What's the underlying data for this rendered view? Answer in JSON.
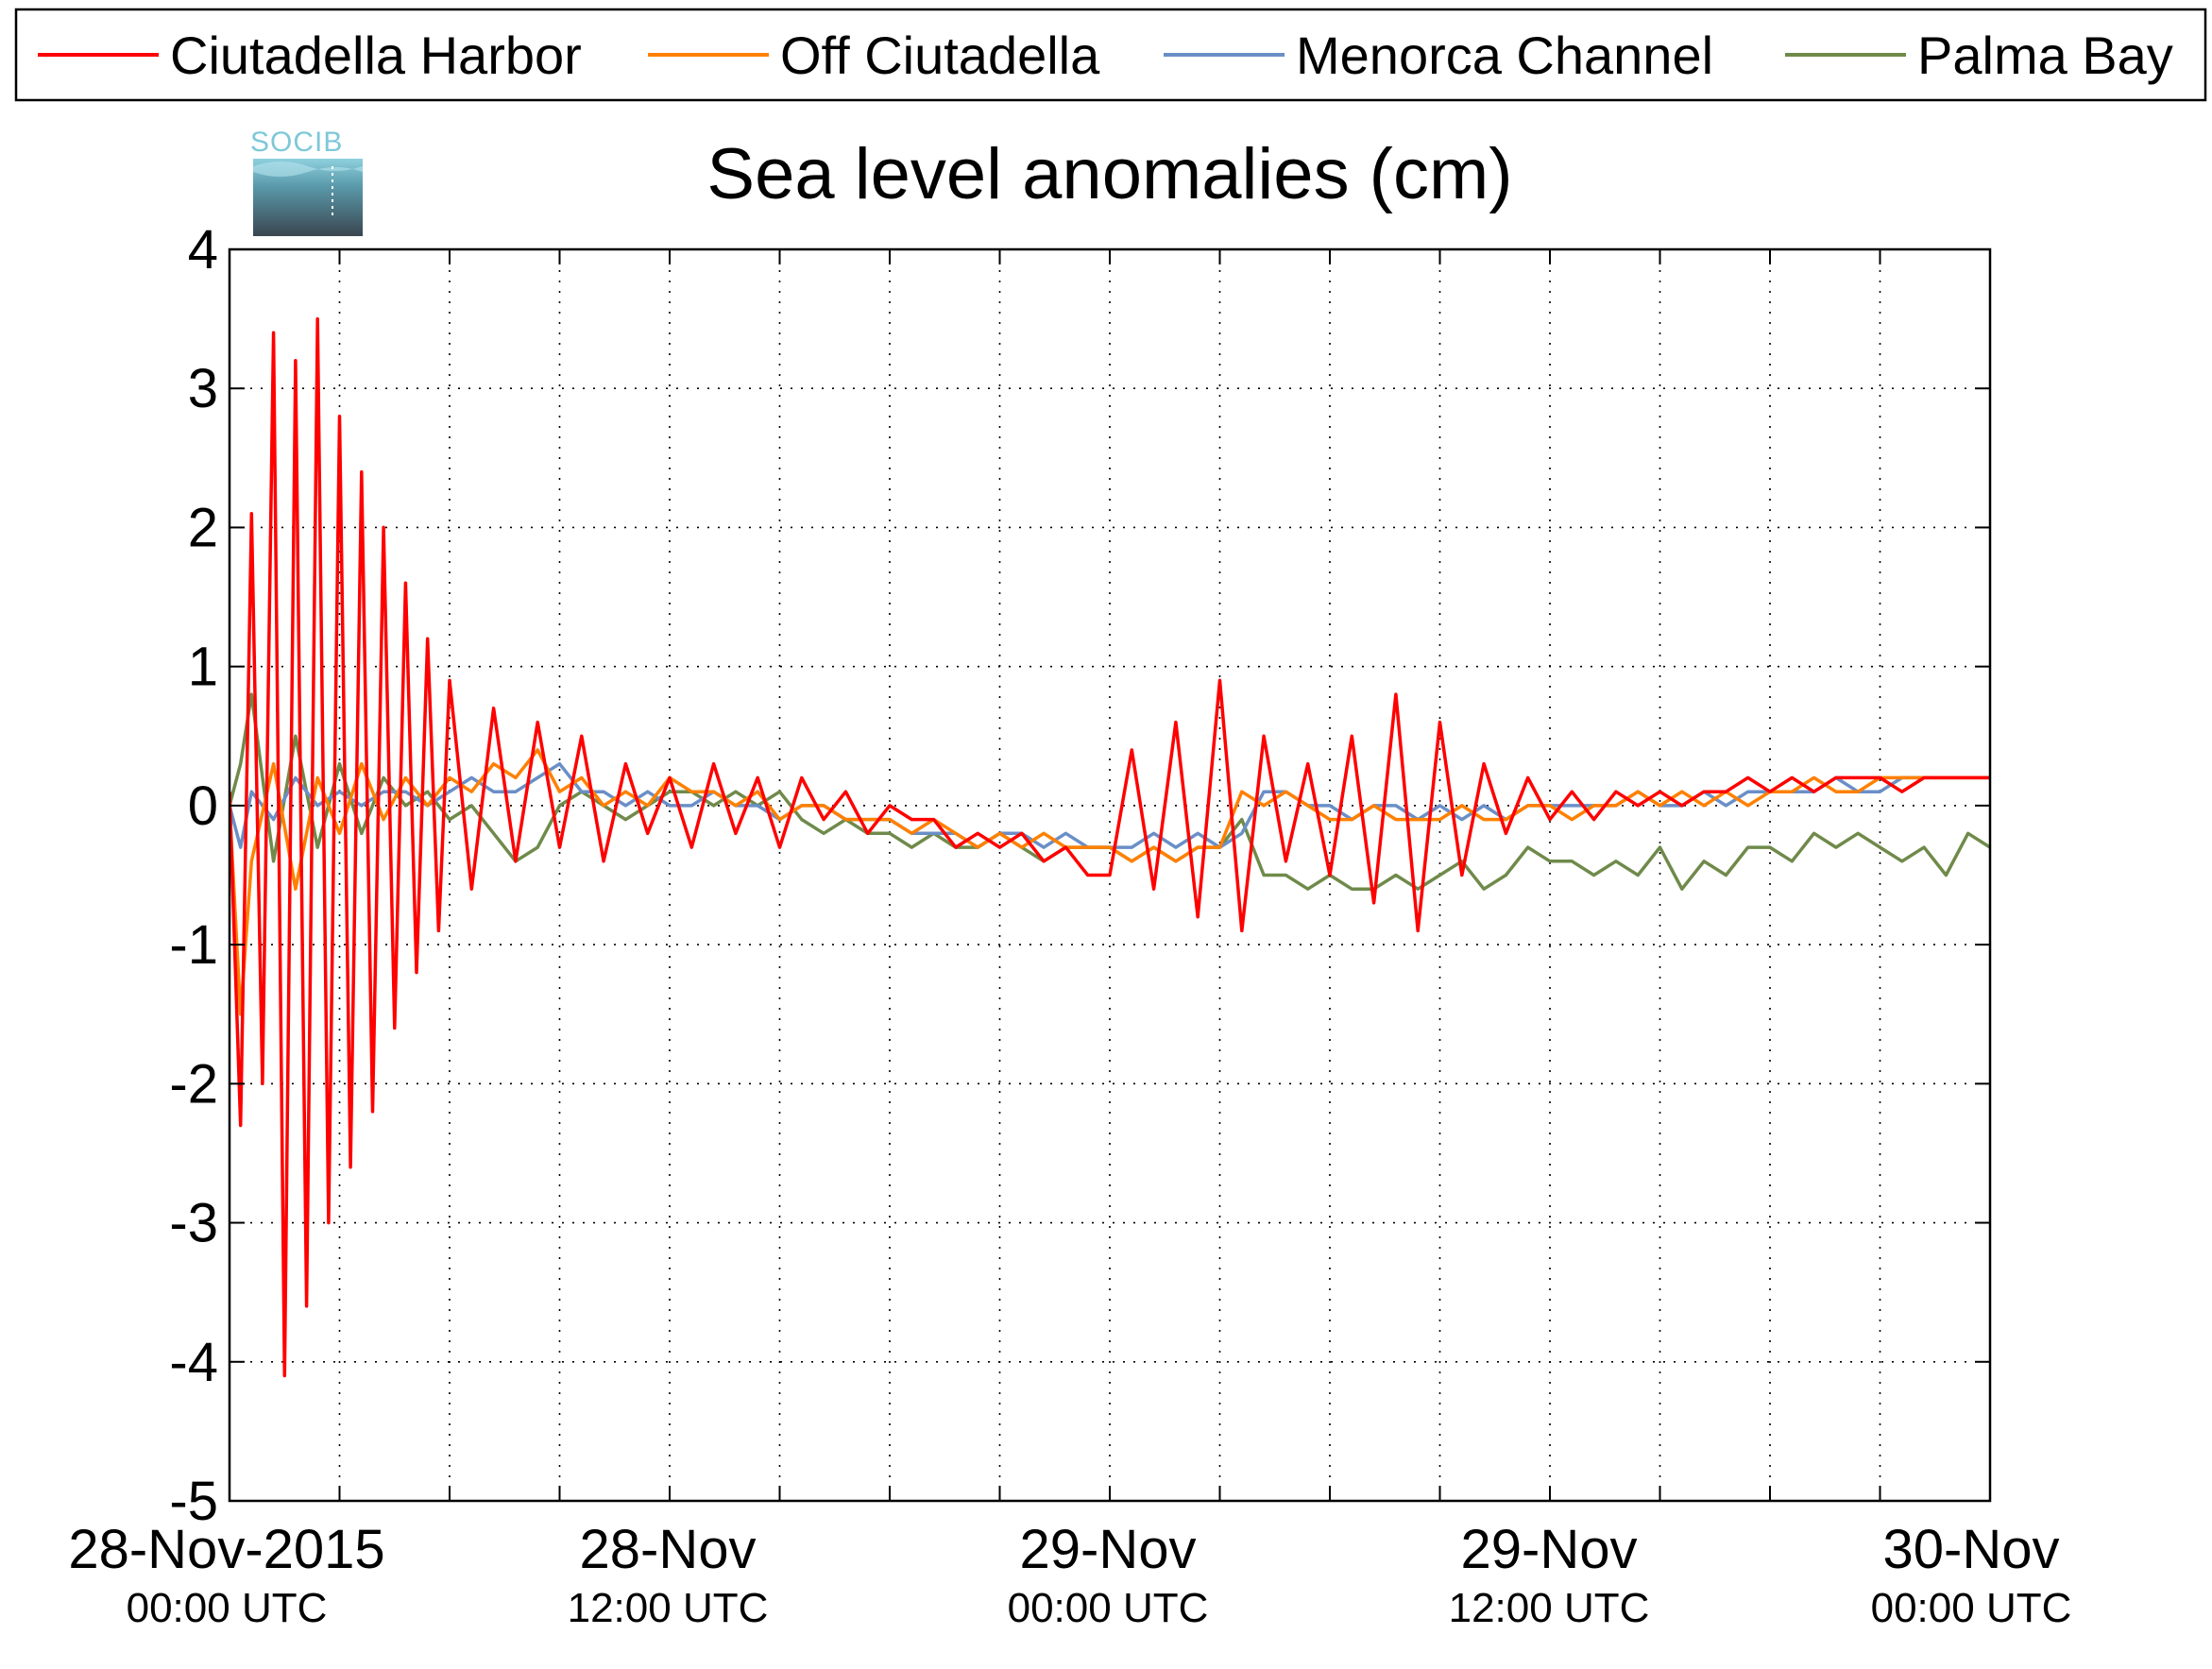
{
  "logo": {
    "text": "SOCIB"
  },
  "chart_data": {
    "type": "line",
    "title": "Sea level anomalies (cm)",
    "xlabel": "",
    "ylabel": "",
    "ylim": [
      -5,
      4
    ],
    "yticks": [
      -5,
      -4,
      -3,
      -2,
      -1,
      0,
      1,
      2,
      3,
      4
    ],
    "ytick_labels": [
      "-5",
      "-4",
      "-3",
      "-2",
      "-1",
      "0",
      "1",
      "2",
      "3",
      "4"
    ],
    "xlim_hours": [
      -5,
      75
    ],
    "grid": true,
    "legend_position": "top",
    "xtick_labels": [
      {
        "hour": 0,
        "date": "28-Nov-2015",
        "time": "00:00 UTC"
      },
      {
        "hour": 20,
        "date": "28-Nov",
        "time": "12:00 UTC"
      },
      {
        "hour": 40,
        "date": "29-Nov",
        "time": "00:00 UTC"
      },
      {
        "hour": 60,
        "date": "29-Nov",
        "time": "12:00 UTC"
      },
      {
        "hour": 80,
        "date": "30-Nov",
        "time": "00:00 UTC"
      }
    ],
    "xminor_hours": [
      5,
      10,
      15,
      25,
      30,
      35,
      45,
      50,
      55,
      65,
      70
    ],
    "series": [
      {
        "name": "Ciutadella Harbor",
        "color": "#ff0000",
        "x": [
          -5,
          -4.5,
          -4,
          -3.5,
          -3,
          -2.5,
          -2,
          -1.5,
          -1,
          -0.5,
          0,
          0.5,
          1,
          1.5,
          2,
          2.5,
          3,
          3.5,
          4,
          4.5,
          5,
          6,
          7,
          8,
          9,
          10,
          11,
          12,
          13,
          14,
          15,
          16,
          17,
          18,
          19,
          20,
          21,
          22,
          23,
          24,
          25,
          26,
          27,
          28,
          29,
          30,
          31,
          32,
          33,
          34,
          35,
          36,
          37,
          38,
          39,
          40,
          41,
          42,
          43,
          44,
          45,
          46,
          47,
          48,
          49,
          50,
          51,
          52,
          53,
          54,
          55,
          56,
          57,
          58,
          59,
          60,
          61,
          62,
          63,
          64,
          65,
          66,
          67,
          68,
          69,
          70,
          71,
          72,
          73,
          74,
          75
        ],
        "y": [
          0.1,
          -2.3,
          2.1,
          -2.0,
          3.4,
          -4.1,
          3.2,
          -3.6,
          3.5,
          -3.0,
          2.8,
          -2.6,
          2.4,
          -2.2,
          2.0,
          -1.6,
          1.6,
          -1.2,
          1.2,
          -0.9,
          0.9,
          -0.6,
          0.7,
          -0.4,
          0.6,
          -0.3,
          0.5,
          -0.4,
          0.3,
          -0.2,
          0.2,
          -0.3,
          0.3,
          -0.2,
          0.2,
          -0.3,
          0.2,
          -0.1,
          0.1,
          -0.2,
          0.0,
          -0.1,
          -0.1,
          -0.3,
          -0.2,
          -0.3,
          -0.2,
          -0.4,
          -0.3,
          -0.5,
          -0.5,
          0.4,
          -0.6,
          0.6,
          -0.8,
          0.9,
          -0.9,
          0.5,
          -0.4,
          0.3,
          -0.5,
          0.5,
          -0.7,
          0.8,
          -0.9,
          0.6,
          -0.5,
          0.3,
          -0.2,
          0.2,
          -0.1,
          0.1,
          -0.1,
          0.1,
          0.0,
          0.1,
          0.0,
          0.1,
          0.1,
          0.2,
          0.1,
          0.2,
          0.1,
          0.2,
          0.2,
          0.2,
          0.1,
          0.2,
          0.2,
          0.2,
          0.2
        ]
      },
      {
        "name": "Off Ciutadella",
        "color": "#ff8000",
        "x": [
          -5,
          -4.5,
          -4,
          -3,
          -2,
          -1,
          0,
          1,
          2,
          3,
          4,
          5,
          6,
          7,
          8,
          9,
          10,
          11,
          12,
          13,
          14,
          15,
          16,
          17,
          18,
          19,
          20,
          21,
          22,
          23,
          24,
          25,
          26,
          27,
          28,
          29,
          30,
          31,
          32,
          33,
          34,
          35,
          36,
          37,
          38,
          39,
          40,
          41,
          42,
          43,
          44,
          45,
          46,
          47,
          48,
          49,
          50,
          51,
          52,
          53,
          54,
          55,
          56,
          57,
          58,
          59,
          60,
          61,
          62,
          63,
          64,
          65,
          66,
          67,
          68,
          69,
          70,
          71,
          72,
          73,
          74,
          75
        ],
        "y": [
          0.0,
          -1.5,
          -0.4,
          0.3,
          -0.6,
          0.2,
          -0.2,
          0.3,
          -0.1,
          0.2,
          0.0,
          0.2,
          0.1,
          0.3,
          0.2,
          0.4,
          0.1,
          0.2,
          0.0,
          0.1,
          0.0,
          0.2,
          0.1,
          0.1,
          0.0,
          0.1,
          -0.1,
          0.0,
          0.0,
          -0.1,
          -0.1,
          -0.1,
          -0.2,
          -0.1,
          -0.2,
          -0.3,
          -0.2,
          -0.3,
          -0.2,
          -0.3,
          -0.3,
          -0.3,
          -0.4,
          -0.3,
          -0.4,
          -0.3,
          -0.3,
          0.1,
          0.0,
          0.1,
          0.0,
          -0.1,
          -0.1,
          0.0,
          -0.1,
          -0.1,
          -0.1,
          0.0,
          -0.1,
          -0.1,
          0.0,
          0.0,
          -0.1,
          0.0,
          0.0,
          0.1,
          0.0,
          0.1,
          0.0,
          0.1,
          0.0,
          0.1,
          0.1,
          0.2,
          0.1,
          0.1,
          0.2,
          0.2,
          0.2,
          0.2,
          0.2,
          0.2
        ]
      },
      {
        "name": "Menorca Channel",
        "color": "#6a8fc7",
        "x": [
          -5,
          -4.5,
          -4,
          -3,
          -2,
          -1,
          0,
          1,
          2,
          3,
          4,
          5,
          6,
          7,
          8,
          9,
          10,
          11,
          12,
          13,
          14,
          15,
          16,
          17,
          18,
          19,
          20,
          21,
          22,
          23,
          24,
          25,
          26,
          27,
          28,
          29,
          30,
          31,
          32,
          33,
          34,
          35,
          36,
          37,
          38,
          39,
          40,
          41,
          42,
          43,
          44,
          45,
          46,
          47,
          48,
          49,
          50,
          51,
          52,
          53,
          54,
          55,
          56,
          57,
          58,
          59,
          60,
          61,
          62,
          63,
          64,
          65,
          66,
          67,
          68,
          69,
          70,
          71,
          72,
          73,
          74,
          75
        ],
        "y": [
          0.0,
          -0.3,
          0.1,
          -0.1,
          0.2,
          0.0,
          0.1,
          0.0,
          0.1,
          0.1,
          0.0,
          0.1,
          0.2,
          0.1,
          0.1,
          0.2,
          0.3,
          0.1,
          0.1,
          0.0,
          0.1,
          0.0,
          0.0,
          0.1,
          0.0,
          0.0,
          -0.1,
          0.0,
          0.0,
          -0.1,
          -0.1,
          -0.1,
          -0.2,
          -0.2,
          -0.2,
          -0.3,
          -0.2,
          -0.2,
          -0.3,
          -0.2,
          -0.3,
          -0.3,
          -0.3,
          -0.2,
          -0.3,
          -0.2,
          -0.3,
          -0.2,
          0.1,
          0.1,
          0.0,
          0.0,
          -0.1,
          0.0,
          0.0,
          -0.1,
          0.0,
          -0.1,
          0.0,
          -0.1,
          0.0,
          0.0,
          0.0,
          0.0,
          0.0,
          0.1,
          0.0,
          0.0,
          0.1,
          0.0,
          0.1,
          0.1,
          0.1,
          0.1,
          0.2,
          0.1,
          0.1,
          0.2,
          0.2,
          0.2,
          0.2,
          0.2
        ]
      },
      {
        "name": "Palma Bay",
        "color": "#6f8a4a",
        "x": [
          -5,
          -4.5,
          -4,
          -3,
          -2,
          -1,
          0,
          1,
          2,
          3,
          4,
          5,
          6,
          7,
          8,
          9,
          10,
          11,
          12,
          13,
          14,
          15,
          16,
          17,
          18,
          19,
          20,
          21,
          22,
          23,
          24,
          25,
          26,
          27,
          28,
          29,
          30,
          31,
          32,
          33,
          34,
          35,
          36,
          37,
          38,
          39,
          40,
          41,
          42,
          43,
          44,
          45,
          46,
          47,
          48,
          49,
          50,
          51,
          52,
          53,
          54,
          55,
          56,
          57,
          58,
          59,
          60,
          61,
          62,
          63,
          64,
          65,
          66,
          67,
          68,
          69,
          70,
          71,
          72,
          73,
          74,
          75
        ],
        "y": [
          0.0,
          0.3,
          0.8,
          -0.4,
          0.5,
          -0.3,
          0.3,
          -0.2,
          0.2,
          0.0,
          0.1,
          -0.1,
          0.0,
          -0.2,
          -0.4,
          -0.3,
          0.0,
          0.1,
          0.0,
          -0.1,
          0.0,
          0.1,
          0.1,
          0.0,
          0.1,
          0.0,
          0.1,
          -0.1,
          -0.2,
          -0.1,
          -0.2,
          -0.2,
          -0.3,
          -0.2,
          -0.3,
          -0.3,
          -0.2,
          -0.3,
          -0.4,
          -0.3,
          -0.3,
          -0.3,
          -0.4,
          -0.3,
          -0.4,
          -0.3,
          -0.3,
          -0.1,
          -0.5,
          -0.5,
          -0.6,
          -0.5,
          -0.6,
          -0.6,
          -0.5,
          -0.6,
          -0.5,
          -0.4,
          -0.6,
          -0.5,
          -0.3,
          -0.4,
          -0.4,
          -0.5,
          -0.4,
          -0.5,
          -0.3,
          -0.6,
          -0.4,
          -0.5,
          -0.3,
          -0.3,
          -0.4,
          -0.2,
          -0.3,
          -0.2,
          -0.3,
          -0.4,
          -0.3,
          -0.5,
          -0.2,
          -0.3
        ]
      }
    ]
  }
}
